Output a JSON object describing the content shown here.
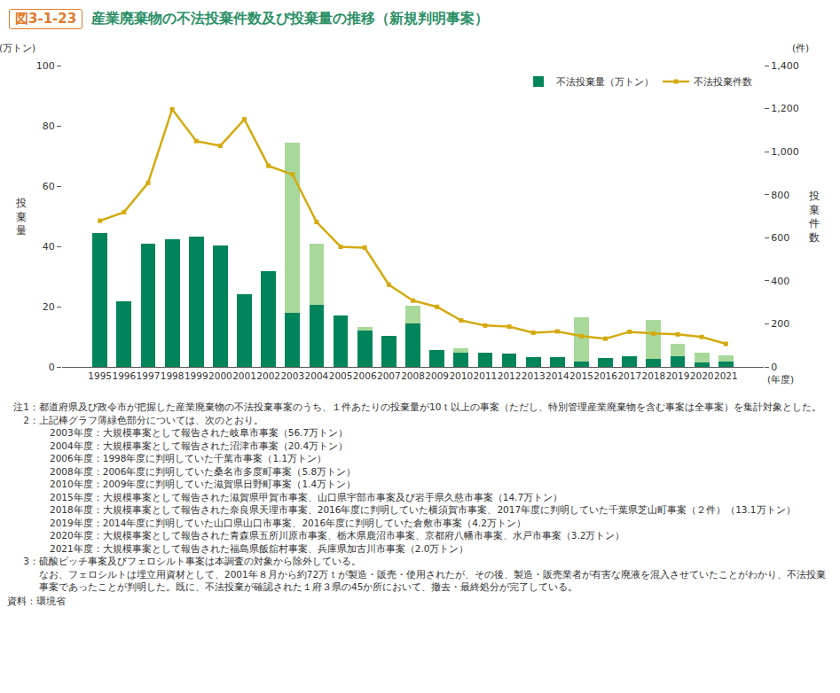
{
  "chart_data": {
    "type": "bar",
    "figure_number": "図3-1-23",
    "title": "産業廃棄物の不法投棄件数及び投棄量の推移（新規判明事案）",
    "ylabel": "投棄量",
    "yunit": "(万トン)",
    "y2label": "投棄件数",
    "y2unit": "(件)",
    "xunit": "(年度)",
    "categories": [
      "1995",
      "1996",
      "1997",
      "1998",
      "1999",
      "2000",
      "2001",
      "2002",
      "2003",
      "2004",
      "2005",
      "2006",
      "2007",
      "2008",
      "2009",
      "2010",
      "2011",
      "2012",
      "2013",
      "2014",
      "2015",
      "2016",
      "2017",
      "2018",
      "2019",
      "2020",
      "2021"
    ],
    "stacked": true,
    "grid": false,
    "legend": "top right",
    "series": [
      {
        "name": "不法投棄量（万トン）",
        "type": "bar",
        "color": "#00845a",
        "values": [
          44.4,
          21.8,
          40.8,
          42.4,
          43.3,
          40.3,
          24.2,
          31.8,
          17.8,
          20.6,
          17.2,
          12.0,
          10.2,
          14.5,
          5.7,
          4.8,
          4.8,
          4.4,
          3.1,
          3.1,
          1.9,
          2.9,
          3.6,
          2.6,
          3.5,
          1.5,
          1.8
        ]
      },
      {
        "type": "bar",
        "color": "#a8d99b",
        "values": [
          null,
          null,
          null,
          null,
          null,
          null,
          null,
          null,
          56.7,
          20.4,
          null,
          1.1,
          null,
          5.8,
          null,
          1.4,
          null,
          null,
          null,
          null,
          14.7,
          null,
          null,
          13.1,
          4.2,
          3.2,
          2.0
        ]
      },
      {
        "name": "不法投棄件数",
        "type": "line",
        "axis": "y2",
        "color": "#d4aa10",
        "marker": "square",
        "values": [
          679,
          719,
          855,
          1197,
          1049,
          1027,
          1150,
          934,
          894,
          673,
          558,
          554,
          382,
          308,
          279,
          216,
          192,
          187,
          159,
          165,
          143,
          131,
          163,
          155,
          151,
          139,
          107
        ]
      }
    ],
    "ylim": [
      0,
      100
    ],
    "yticks": [
      0,
      20,
      40,
      60,
      80,
      100
    ],
    "y2lim": [
      0,
      1400
    ],
    "y2ticks": [
      0,
      200,
      400,
      600,
      800,
      {
        "value": 1000,
        "label": "1,000"
      },
      {
        "value": 1200,
        "label": "1,200"
      },
      {
        "value": 1400,
        "label": "1,400"
      }
    ],
    "notes": [
      {
        "label": "注1：",
        "lines": [
          "都道府県及び政令市が把握した産業廃棄物の不法投棄事案のうち、１件あたりの投棄量が10ｔ以上の事案（ただし、特別管理産業廃棄物を含む事案は全事案）を集計対象とした。"
        ]
      },
      {
        "label": "2：",
        "lines": [
          "上記棒グラフ薄緑色部分については、次のとおり。"
        ],
        "sub": [
          "2003年度：大規模事案として報告された岐阜市事案（56.7万トン）",
          "2004年度：大規模事案として報告された沼津市事案（20.4万トン）",
          "2006年度：1998年度に判明していた千葉市事案（1.1万トン）",
          "2008年度：2006年度に判明していた桑名市多度町事案（5.8万トン）",
          "2010年度：2009年度に判明していた滋賀県日野町事案（1.4万トン）",
          "2015年度：大規模事案として報告された滋賀県甲賀市事案、山口県宇部市事案及び岩手県久慈市事案（14.7万トン）",
          "2018年度：大規模事案として報告された奈良県天理市事案、2016年度に判明していた横須賀市事案、2017年度に判明していた千葉県芝山町事案（２件）（13.1万トン）",
          "2019年度：2014年度に判明していた山口県山口市事案、2016年度に判明していた倉敷市事案（4.2万トン）",
          "2020年度：大規模事案として報告された青森県五所川原市事案、栃木県鹿沼市事案、京都府八幡市事案、水戸市事案（3.2万トン）",
          "2021年度：大規模事案として報告された福島県飯舘村事案、兵庫県加古川市事案（2.0万トン）"
        ]
      },
      {
        "label": "3：",
        "lines": [
          "硫酸ピッチ事案及びフェロシルト事案は本調査の対象から除外している。",
          "なお、フェロシルトは埋立用資材として、2001年８月から約72万ｔが製造・販売・使用されたが、その後、製造・販売業者が有害な廃液を混入させていたことがわかり、不法投棄事案であったことが判明した。既に、不法投棄が確認された１府３県の45か所において、撤去・最終処分が完了している。"
        ]
      }
    ],
    "source": "資料：環境省"
  }
}
